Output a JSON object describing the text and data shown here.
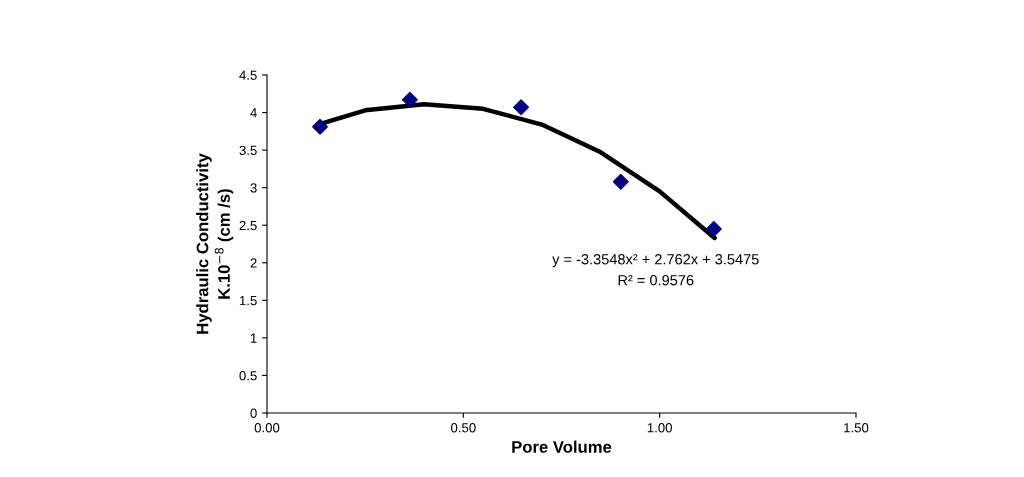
{
  "chart_data": {
    "type": "scatter",
    "xlabel": "Pore Volume",
    "ylabel": "Hydraulic Conductivity\nK.10$^{−8}$ (cm /s)",
    "x": [
      0.135,
      0.364,
      0.647,
      0.901,
      1.138
    ],
    "series": [
      {
        "color": "#000080",
        "marker": "diamond",
        "values": [
          3.81,
          4.17,
          4.07,
          3.08,
          2.45
        ]
      },
      {
        "type": "line",
        "color": "#000000",
        "marker": "none",
        "line_style": "solid",
        "x": [
          0.13,
          0.25,
          0.4,
          0.55,
          0.7,
          0.85,
          1.0,
          1.14
        ],
        "values": [
          3.84,
          4.03,
          4.11,
          4.05,
          3.84,
          3.47,
          2.95,
          2.33
        ]
      }
    ],
    "xlim": [
      0,
      1.5
    ],
    "xticks": [
      {
        "value": 0,
        "label": "0.00"
      },
      {
        "value": 0.5,
        "label": "0.50"
      },
      {
        "value": 1.0,
        "label": "1.00"
      },
      {
        "value": 1.5,
        "label": "1.50"
      }
    ],
    "ylim": [
      0,
      4.5
    ],
    "yticks": [
      0,
      0.5,
      1,
      1.5,
      2,
      2.5,
      3,
      3.5,
      4,
      4.5
    ],
    "grid": false,
    "legend": false,
    "annotations": [
      "y = -3.3548x² + 2.762x + 3.5475",
      "R² = 0.9576"
    ]
  }
}
